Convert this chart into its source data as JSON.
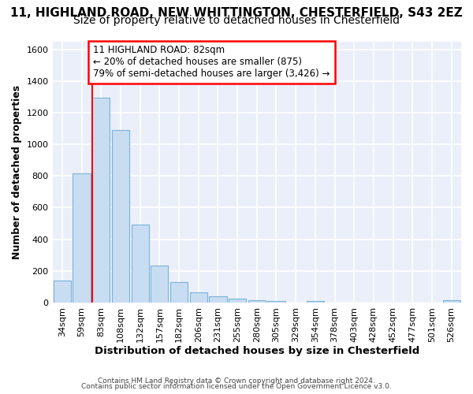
{
  "title1": "11, HIGHLAND ROAD, NEW WHITTINGTON, CHESTERFIELD, S43 2EZ",
  "title2": "Size of property relative to detached houses in Chesterfield",
  "xlabel": "Distribution of detached houses by size in Chesterfield",
  "ylabel": "Number of detached properties",
  "footer1": "Contains HM Land Registry data © Crown copyright and database right 2024.",
  "footer2": "Contains public sector information licensed under the Open Government Licence v3.0.",
  "bin_labels": [
    "34sqm",
    "59sqm",
    "83sqm",
    "108sqm",
    "132sqm",
    "157sqm",
    "182sqm",
    "206sqm",
    "231sqm",
    "255sqm",
    "280sqm",
    "305sqm",
    "329sqm",
    "354sqm",
    "378sqm",
    "403sqm",
    "428sqm",
    "452sqm",
    "477sqm",
    "501sqm",
    "526sqm"
  ],
  "bar_values": [
    140,
    815,
    1295,
    1090,
    495,
    232,
    130,
    65,
    38,
    27,
    15,
    8,
    2,
    12,
    2,
    0,
    1,
    0,
    0,
    0,
    13
  ],
  "bar_color": "#c9ddf2",
  "bar_edge_color": "#7ab3d8",
  "marker_bin_index": 2,
  "annotation_line1": "11 HIGHLAND ROAD: 82sqm",
  "annotation_line2": "← 20% of detached houses are smaller (875)",
  "annotation_line3": "79% of semi-detached houses are larger (3,426) →",
  "annotation_box_color": "white",
  "annotation_box_edge_color": "red",
  "marker_line_color": "red",
  "ylim": [
    0,
    1650
  ],
  "yticks": [
    0,
    200,
    400,
    600,
    800,
    1000,
    1200,
    1400,
    1600
  ],
  "background_color": "#eaeff9",
  "grid_color": "white",
  "title1_fontsize": 11,
  "title2_fontsize": 10,
  "xlabel_fontsize": 9.5,
  "ylabel_fontsize": 9,
  "tick_fontsize": 8,
  "annotation_fontsize": 8.5,
  "footer_fontsize": 6.5
}
